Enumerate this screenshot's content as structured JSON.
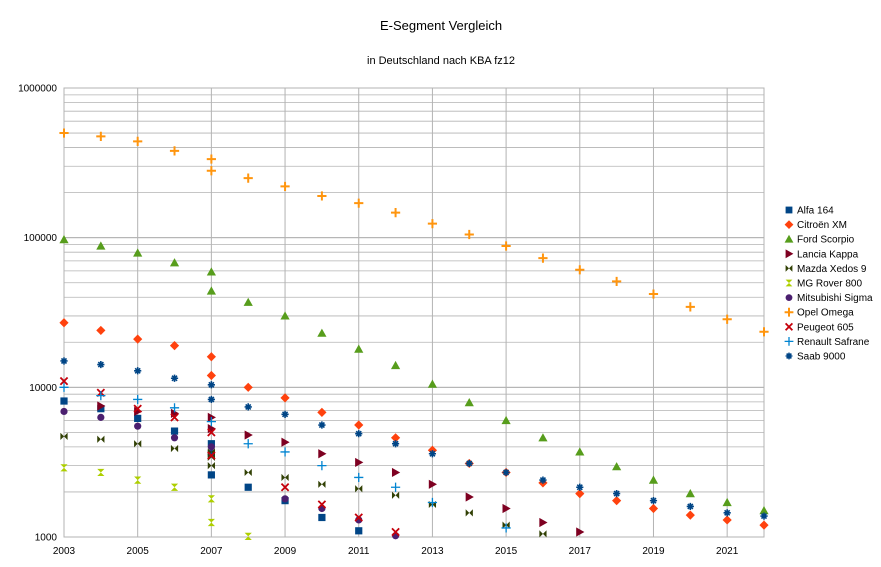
{
  "chart_data": {
    "type": "scatter",
    "title": "E-Segment Vergleich",
    "subtitle": "in Deutschland nach KBA fz12",
    "xlabel": "",
    "ylabel": "",
    "y_scale": "log",
    "xlim": [
      2003,
      2022
    ],
    "ylim": [
      1000,
      1000000
    ],
    "grid": "on",
    "legend_position": "right",
    "x_tick_labels": [
      "2003",
      "2005",
      "2007",
      "2009",
      "2011",
      "2013",
      "2015",
      "2017",
      "2019",
      "2021"
    ],
    "y_tick_labels": [
      "1000",
      "10000",
      "100000",
      "1000000"
    ],
    "series": [
      {
        "name": "Alfa 164",
        "color": "#004586",
        "marker": "square",
        "x": [
          2003,
          2004,
          2005,
          2006,
          2007,
          2007,
          2007,
          2008,
          2009,
          2010,
          2011
        ],
        "y": [
          8100,
          7200,
          6200,
          5100,
          4200,
          3600,
          2600,
          2150,
          1750,
          1350,
          1100
        ]
      },
      {
        "name": "Citroën XM",
        "color": "#ff420e",
        "marker": "diamond",
        "x": [
          2003,
          2004,
          2005,
          2006,
          2007,
          2007,
          2008,
          2009,
          2010,
          2011,
          2012,
          2013,
          2014,
          2015,
          2016,
          2017,
          2018,
          2019,
          2020,
          2021,
          2022
        ],
        "y": [
          27000,
          24000,
          21000,
          19000,
          16000,
          12000,
          10000,
          8500,
          6800,
          5600,
          4600,
          3800,
          3100,
          2700,
          2300,
          1950,
          1750,
          1550,
          1400,
          1300,
          1200
        ]
      },
      {
        "name": "Ford Scorpio",
        "color": "#579d1c",
        "marker": "triangle-up",
        "x": [
          2003,
          2004,
          2005,
          2006,
          2007,
          2007,
          2008,
          2009,
          2010,
          2011,
          2012,
          2013,
          2014,
          2015,
          2016,
          2017,
          2018,
          2019,
          2020,
          2021,
          2022
        ],
        "y": [
          97000,
          88000,
          79000,
          68000,
          59000,
          44000,
          37000,
          30000,
          23000,
          18000,
          14000,
          10500,
          7900,
          6000,
          4600,
          3700,
          2950,
          2400,
          1950,
          1700,
          1500
        ]
      },
      {
        "name": "Lancia Kappa",
        "color": "#7e0021",
        "marker": "triangle-right",
        "x": [
          2004,
          2005,
          2006,
          2007,
          2007,
          2008,
          2009,
          2010,
          2011,
          2012,
          2013,
          2014,
          2015,
          2016,
          2017
        ],
        "y": [
          7500,
          6900,
          6700,
          6300,
          5300,
          4800,
          4300,
          3600,
          3150,
          2700,
          2250,
          1850,
          1550,
          1250,
          1080
        ]
      },
      {
        "name": "Mazda Xedos 9",
        "color": "#314004",
        "marker": "bowtie",
        "x": [
          2003,
          2004,
          2005,
          2006,
          2007,
          2007,
          2007,
          2008,
          2009,
          2010,
          2011,
          2012,
          2013,
          2014,
          2015,
          2016
        ],
        "y": [
          4700,
          4500,
          4200,
          3900,
          3700,
          3400,
          3000,
          2700,
          2500,
          2250,
          2100,
          1900,
          1650,
          1450,
          1200,
          1050
        ]
      },
      {
        "name": "MG Rover 800",
        "color": "#aecf00",
        "marker": "hourglass",
        "x": [
          2003,
          2004,
          2005,
          2006,
          2007,
          2007,
          2008
        ],
        "y": [
          2900,
          2700,
          2400,
          2150,
          1800,
          1250,
          1010
        ]
      },
      {
        "name": "Mitsubishi Sigma",
        "color": "#4b1f6f",
        "marker": "circle",
        "x": [
          2003,
          2004,
          2005,
          2006,
          2007,
          2009,
          2010,
          2011,
          2012
        ],
        "y": [
          6900,
          6300,
          5500,
          4600,
          4000,
          1800,
          1550,
          1300,
          1020
        ]
      },
      {
        "name": "Opel Omega",
        "color": "#ff950e",
        "marker": "plus",
        "x": [
          2003,
          2004,
          2005,
          2006,
          2007,
          2007,
          2008,
          2009,
          2010,
          2011,
          2012,
          2013,
          2014,
          2015,
          2016,
          2017,
          2018,
          2019,
          2020,
          2021,
          2022
        ],
        "y": [
          500000,
          475000,
          440000,
          380000,
          335000,
          280000,
          250000,
          220000,
          190000,
          170000,
          147000,
          124000,
          105000,
          88000,
          73000,
          61000,
          51000,
          42000,
          34500,
          28500,
          23500
        ]
      },
      {
        "name": "Peugeot 605",
        "color": "#c5000b",
        "marker": "x",
        "x": [
          2003,
          2004,
          2005,
          2006,
          2007,
          2007,
          2009,
          2010,
          2011,
          2012
        ],
        "y": [
          11000,
          9200,
          7200,
          6300,
          5000,
          3500,
          2150,
          1650,
          1350,
          1080
        ]
      },
      {
        "name": "Renault Safrane",
        "color": "#0084d1",
        "marker": "cross",
        "x": [
          2003,
          2004,
          2005,
          2006,
          2007,
          2008,
          2009,
          2010,
          2011,
          2012,
          2013,
          2015
        ],
        "y": [
          10000,
          8800,
          8300,
          7300,
          5900,
          4200,
          3700,
          3000,
          2500,
          2150,
          1700,
          1150
        ]
      },
      {
        "name": "Saab 9000",
        "color": "#004586",
        "marker": "asterisk",
        "x": [
          2003,
          2004,
          2005,
          2006,
          2007,
          2007,
          2008,
          2009,
          2010,
          2011,
          2012,
          2013,
          2014,
          2015,
          2016,
          2017,
          2018,
          2019,
          2020,
          2021,
          2022
        ],
        "y": [
          15000,
          14200,
          12900,
          11500,
          10400,
          8300,
          7400,
          6600,
          5600,
          4900,
          4200,
          3600,
          3100,
          2700,
          2400,
          2150,
          1950,
          1750,
          1600,
          1450,
          1380
        ]
      }
    ]
  }
}
